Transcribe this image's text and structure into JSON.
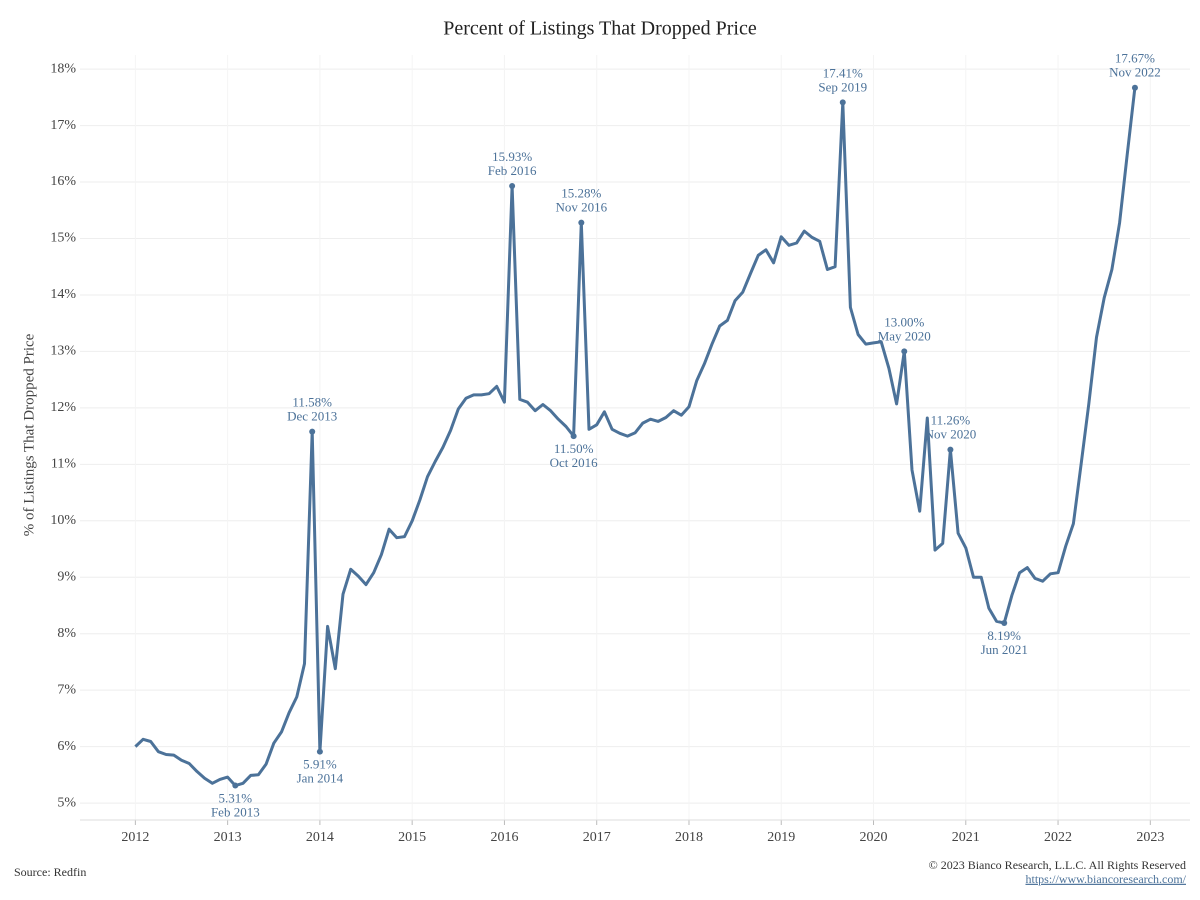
{
  "chart_data": {
    "type": "line",
    "title": "Percent of Listings That Dropped Price",
    "y_label": "% of Listings That Dropped Price",
    "source": "Source: Redfin",
    "copyright": "© 2023 Bianco Research, L.L.C. All Rights Reserved",
    "url": "https://www.biancoresearch.com/",
    "x": [
      "2012-01",
      "2012-02",
      "2012-03",
      "2012-04",
      "2012-05",
      "2012-06",
      "2012-07",
      "2012-08",
      "2012-09",
      "2012-10",
      "2012-11",
      "2012-12",
      "2013-01",
      "2013-02",
      "2013-03",
      "2013-04",
      "2013-05",
      "2013-06",
      "2013-07",
      "2013-08",
      "2013-09",
      "2013-10",
      "2013-11",
      "2013-12",
      "2014-01",
      "2014-02",
      "2014-03",
      "2014-04",
      "2014-05",
      "2014-06",
      "2014-07",
      "2014-08",
      "2014-09",
      "2014-10",
      "2014-11",
      "2014-12",
      "2015-01",
      "2015-02",
      "2015-03",
      "2015-04",
      "2015-05",
      "2015-06",
      "2015-07",
      "2015-08",
      "2015-09",
      "2015-10",
      "2015-11",
      "2015-12",
      "2016-01",
      "2016-02",
      "2016-03",
      "2016-04",
      "2016-05",
      "2016-06",
      "2016-07",
      "2016-08",
      "2016-09",
      "2016-10",
      "2016-11",
      "2016-12",
      "2017-01",
      "2017-02",
      "2017-03",
      "2017-04",
      "2017-05",
      "2017-06",
      "2017-07",
      "2017-08",
      "2017-09",
      "2017-10",
      "2017-11",
      "2017-12",
      "2018-01",
      "2018-02",
      "2018-03",
      "2018-04",
      "2018-05",
      "2018-06",
      "2018-07",
      "2018-08",
      "2018-09",
      "2018-10",
      "2018-11",
      "2018-12",
      "2019-01",
      "2019-02",
      "2019-03",
      "2019-04",
      "2019-05",
      "2019-06",
      "2019-07",
      "2019-08",
      "2019-09",
      "2019-10",
      "2019-11",
      "2019-12",
      "2020-01",
      "2020-02",
      "2020-03",
      "2020-04",
      "2020-05",
      "2020-06",
      "2020-07",
      "2020-08",
      "2020-09",
      "2020-10",
      "2020-11",
      "2020-12",
      "2021-01",
      "2021-02",
      "2021-03",
      "2021-04",
      "2021-05",
      "2021-06",
      "2021-07",
      "2021-08",
      "2021-09",
      "2021-10",
      "2021-11",
      "2021-12",
      "2022-01",
      "2022-02",
      "2022-03",
      "2022-04",
      "2022-05",
      "2022-06",
      "2022-07",
      "2022-08",
      "2022-09",
      "2022-10",
      "2022-11"
    ],
    "series": [
      {
        "name": "% of Listings That Dropped Price",
        "color": "#4c7299",
        "values": [
          6.0,
          6.13,
          6.09,
          5.91,
          5.86,
          5.85,
          5.76,
          5.7,
          5.56,
          5.44,
          5.35,
          5.42,
          5.46,
          5.31,
          5.35,
          5.49,
          5.5,
          5.69,
          6.06,
          6.26,
          6.6,
          6.88,
          7.47,
          11.58,
          5.91,
          8.13,
          7.38,
          8.7,
          9.14,
          9.02,
          8.87,
          9.08,
          9.4,
          9.85,
          9.7,
          9.72,
          10.0,
          10.37,
          10.78,
          11.05,
          11.3,
          11.6,
          11.98,
          12.17,
          12.23,
          12.23,
          12.25,
          12.38,
          12.1,
          15.93,
          12.15,
          12.1,
          11.95,
          12.06,
          11.95,
          11.8,
          11.67,
          11.5,
          15.28,
          11.62,
          11.7,
          11.93,
          11.62,
          11.55,
          11.5,
          11.56,
          11.73,
          11.8,
          11.76,
          11.83,
          11.95,
          11.87,
          12.02,
          12.48,
          12.78,
          13.13,
          13.45,
          13.55,
          13.9,
          14.05,
          14.38,
          14.7,
          14.8,
          14.57,
          15.03,
          14.88,
          14.92,
          15.13,
          15.02,
          14.95,
          14.45,
          14.5,
          17.41,
          13.78,
          13.3,
          13.13,
          13.15,
          13.17,
          12.7,
          12.07,
          13.0,
          10.9,
          10.17,
          11.82,
          9.48,
          9.6,
          11.26,
          9.78,
          9.52,
          9.0,
          9.0,
          8.45,
          8.22,
          8.19,
          8.68,
          9.08,
          9.17,
          8.98,
          8.93,
          9.06,
          9.08,
          9.55,
          9.95,
          11.0,
          12.07,
          13.25,
          13.95,
          14.45,
          15.28,
          16.5,
          17.67
        ],
        "value_labels": [
          null,
          null,
          null,
          null,
          null,
          null,
          null,
          null,
          null,
          null,
          null,
          null,
          null,
          "5.31%",
          null,
          null,
          null,
          null,
          null,
          null,
          null,
          null,
          null,
          "11.58%",
          "5.91%",
          null,
          null,
          null,
          null,
          null,
          null,
          null,
          null,
          null,
          null,
          null,
          null,
          null,
          null,
          null,
          null,
          null,
          null,
          null,
          null,
          null,
          null,
          null,
          null,
          "15.93%",
          null,
          null,
          null,
          null,
          null,
          null,
          null,
          "11.50%",
          "15.28%",
          null,
          null,
          null,
          null,
          null,
          null,
          null,
          null,
          null,
          null,
          null,
          null,
          null,
          null,
          null,
          null,
          null,
          null,
          null,
          null,
          null,
          null,
          null,
          null,
          null,
          null,
          null,
          null,
          null,
          null,
          null,
          null,
          null,
          "17.41%",
          null,
          null,
          null,
          null,
          null,
          null,
          null,
          "13.00%",
          null,
          null,
          null,
          null,
          null,
          "11.26%",
          null,
          null,
          null,
          null,
          null,
          null,
          "8.19%",
          null,
          null,
          null,
          null,
          null,
          null,
          null,
          null,
          null,
          null,
          null,
          null,
          null,
          null,
          null,
          null,
          "17.67%"
        ],
        "point_labels": [
          null,
          null,
          null,
          null,
          null,
          null,
          null,
          null,
          null,
          null,
          null,
          null,
          null,
          "Feb 2013",
          null,
          null,
          null,
          null,
          null,
          null,
          null,
          null,
          null,
          "Dec 2013",
          "Jan 2014",
          null,
          null,
          null,
          null,
          null,
          null,
          null,
          null,
          null,
          null,
          null,
          null,
          null,
          null,
          null,
          null,
          null,
          null,
          null,
          null,
          null,
          null,
          null,
          null,
          "Feb 2016",
          null,
          null,
          null,
          null,
          null,
          null,
          null,
          "Oct 2016",
          "Nov 2016",
          null,
          null,
          null,
          null,
          null,
          null,
          null,
          null,
          null,
          null,
          null,
          null,
          null,
          null,
          null,
          null,
          null,
          null,
          null,
          null,
          null,
          null,
          null,
          null,
          null,
          null,
          null,
          null,
          null,
          null,
          null,
          null,
          null,
          "Sep 2019",
          null,
          null,
          null,
          null,
          null,
          null,
          null,
          "May 2020",
          null,
          null,
          null,
          null,
          null,
          "Nov 2020",
          null,
          null,
          null,
          null,
          null,
          null,
          "Jun 2021",
          null,
          null,
          null,
          null,
          null,
          null,
          null,
          null,
          null,
          null,
          null,
          null,
          null,
          null,
          null,
          null,
          "Nov 2022"
        ]
      }
    ],
    "xlim": [
      2011.4,
      2023.43
    ],
    "xticks": [
      2012,
      2013,
      2014,
      2015,
      2016,
      2017,
      2018,
      2019,
      2020,
      2021,
      2022,
      2023
    ],
    "ylim": [
      4.7,
      18.25
    ],
    "yticks": [
      {
        "value": 5,
        "label": "5%"
      },
      {
        "value": 6,
        "label": "6%"
      },
      {
        "value": 7,
        "label": "7%"
      },
      {
        "value": 8,
        "label": "8%"
      },
      {
        "value": 9,
        "label": "9%"
      },
      {
        "value": 10,
        "label": "10%"
      },
      {
        "value": 11,
        "label": "11%"
      },
      {
        "value": 12,
        "label": "12%"
      },
      {
        "value": 13,
        "label": "13%"
      },
      {
        "value": 14,
        "label": "14%"
      },
      {
        "value": 15,
        "label": "15%"
      },
      {
        "value": 16,
        "label": "16%"
      },
      {
        "value": 17,
        "label": "17%"
      },
      {
        "value": 18,
        "label": "18%"
      }
    ],
    "grid": true
  }
}
